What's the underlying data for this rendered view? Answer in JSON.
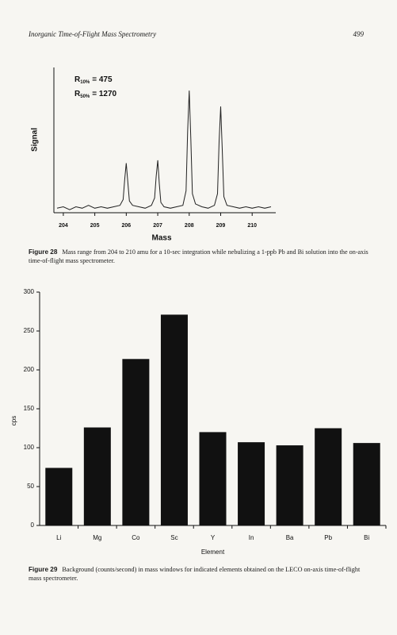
{
  "header": {
    "title": "Inorganic Time-of-Flight Mass Spectrometry",
    "page": "499"
  },
  "chart_data": [
    {
      "type": "line",
      "xlabel": "Mass",
      "ylabel": "Signal",
      "annotations": [
        {
          "base": "R",
          "sub": "10%",
          "text": "= 475"
        },
        {
          "base": "R",
          "sub": "50%",
          "text": "= 1270"
        }
      ],
      "x": [
        203.8,
        204.0,
        204.2,
        204.4,
        204.6,
        204.8,
        205.0,
        205.2,
        205.4,
        205.6,
        205.8,
        205.9,
        205.95,
        206.0,
        206.05,
        206.1,
        206.2,
        206.4,
        206.6,
        206.8,
        206.9,
        206.95,
        207.0,
        207.05,
        207.1,
        207.2,
        207.4,
        207.6,
        207.8,
        207.9,
        207.95,
        208.0,
        208.05,
        208.1,
        208.2,
        208.4,
        208.6,
        208.8,
        208.9,
        208.95,
        209.0,
        209.05,
        209.1,
        209.2,
        209.4,
        209.6,
        209.8,
        210.0,
        210.2,
        210.4,
        210.6
      ],
      "values": [
        2,
        3,
        1,
        3,
        2,
        4,
        2,
        3,
        2,
        3,
        4,
        8,
        22,
        33,
        20,
        7,
        4,
        3,
        2,
        4,
        9,
        24,
        35,
        19,
        6,
        3,
        2,
        3,
        4,
        14,
        55,
        83,
        50,
        12,
        5,
        3,
        2,
        4,
        12,
        48,
        72,
        42,
        10,
        4,
        3,
        2,
        3,
        2,
        3,
        2,
        3
      ],
      "color": "#222222",
      "xlim": [
        203.7,
        210.75
      ],
      "xticks": [
        204,
        205,
        206,
        207,
        208,
        209,
        210
      ],
      "ylim": [
        0,
        100
      ]
    },
    {
      "type": "bar",
      "xlabel": "Element",
      "ylabel": "cps",
      "categories": [
        "Li",
        "Mg",
        "Co",
        "Sc",
        "Y",
        "In",
        "Ba",
        "Pb",
        "Bi"
      ],
      "values": [
        74,
        126,
        214,
        271,
        120,
        107,
        103,
        125,
        106
      ],
      "color": "#111111",
      "ylim": [
        0,
        300
      ],
      "yticks": [
        0,
        50,
        100,
        150,
        200,
        250,
        300
      ]
    }
  ],
  "captions": [
    {
      "label": "Figure 28",
      "text": "Mass range from 204 to 210 amu for a 10-sec integration while nebulizing a 1-ppb Pb and Bi solution into the on-axis time-of-flight mass spectrometer."
    },
    {
      "label": "Figure 29",
      "text": "Background (counts/second) in mass windows for indicated elements obtained on the LECO on-axis time-of-flight mass spectrometer."
    }
  ]
}
